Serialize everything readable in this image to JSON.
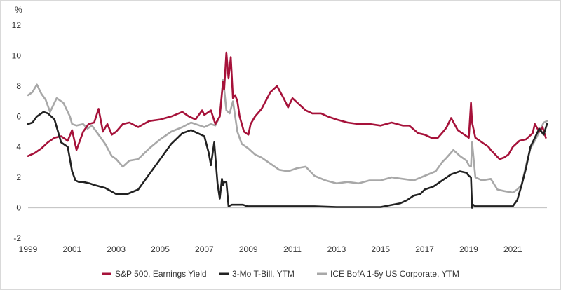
{
  "chart_data": {
    "type": "line",
    "unit_label": "%",
    "ylim": [
      -2,
      12
    ],
    "y_ticks": [
      12,
      10,
      8,
      6,
      4,
      2,
      0,
      -2
    ],
    "xlim": [
      1999.0,
      2022.55
    ],
    "x_ticks": [
      "1999",
      "2001",
      "2003",
      "2005",
      "2007",
      "2009",
      "2011",
      "2013",
      "2015",
      "2017",
      "2019",
      "2021"
    ],
    "grid": false,
    "legend_position": "bottom",
    "series": [
      {
        "name": "S&P 500, Earnings Yield",
        "color": "#a6123a",
        "x": [
          1999.0,
          1999.3,
          1999.6,
          1999.9,
          2000.2,
          2000.5,
          2000.8,
          2001.0,
          2001.2,
          2001.5,
          2001.75,
          2002.0,
          2002.2,
          2002.4,
          2002.6,
          2002.8,
          2003.0,
          2003.3,
          2003.6,
          2004.0,
          2004.5,
          2005.0,
          2005.5,
          2006.0,
          2006.3,
          2006.6,
          2006.9,
          2007.0,
          2007.3,
          2007.5,
          2007.7,
          2007.85,
          2007.9,
          2008.0,
          2008.1,
          2008.2,
          2008.3,
          2008.4,
          2008.5,
          2008.6,
          2008.8,
          2009.0,
          2009.1,
          2009.3,
          2009.6,
          2010.0,
          2010.3,
          2010.6,
          2010.8,
          2011.0,
          2011.3,
          2011.6,
          2011.9,
          2012.3,
          2012.6,
          2013.0,
          2013.5,
          2014.0,
          2014.5,
          2015.0,
          2015.5,
          2016.0,
          2016.3,
          2016.7,
          2017.0,
          2017.3,
          2017.6,
          2017.9,
          2018.0,
          2018.2,
          2018.5,
          2018.8,
          2019.0,
          2019.1,
          2019.15,
          2019.3,
          2019.6,
          2019.9,
          2020.0,
          2020.2,
          2020.4,
          2020.6,
          2020.8,
          2021.0,
          2021.3,
          2021.6,
          2021.9,
          2022.0,
          2022.2,
          2022.35,
          2022.5
        ],
        "values": [
          3.4,
          3.6,
          3.9,
          4.3,
          4.6,
          4.7,
          4.4,
          5.1,
          3.8,
          5.0,
          5.5,
          5.6,
          6.5,
          5.0,
          5.5,
          4.8,
          5.0,
          5.5,
          5.6,
          5.3,
          5.7,
          5.8,
          6.0,
          6.3,
          6.0,
          5.8,
          6.4,
          6.1,
          6.4,
          5.5,
          6.0,
          8.3,
          7.8,
          10.2,
          8.5,
          9.9,
          7.2,
          7.4,
          7.0,
          6.0,
          5.0,
          4.8,
          5.5,
          6.0,
          6.5,
          7.6,
          8.0,
          7.2,
          6.6,
          7.2,
          6.8,
          6.4,
          6.2,
          6.2,
          6.0,
          5.8,
          5.6,
          5.5,
          5.5,
          5.4,
          5.6,
          5.4,
          5.4,
          4.9,
          4.8,
          4.6,
          4.6,
          5.1,
          5.3,
          5.9,
          5.1,
          4.8,
          4.6,
          6.9,
          5.6,
          4.6,
          4.3,
          4.0,
          3.8,
          3.5,
          3.2,
          3.3,
          3.5,
          4.0,
          4.4,
          4.5,
          4.9,
          5.5,
          5.0,
          5.3,
          4.6
        ]
      },
      {
        "name": "3-Mo T-Bill, YTM",
        "color": "#222222",
        "x": [
          1999.0,
          1999.2,
          1999.4,
          1999.7,
          1999.9,
          2000.2,
          2000.5,
          2000.8,
          2001.0,
          2001.15,
          2001.3,
          2001.5,
          2001.8,
          2002.0,
          2002.5,
          2003.0,
          2003.5,
          2004.0,
          2004.5,
          2005.0,
          2005.5,
          2006.0,
          2006.4,
          2006.7,
          2007.0,
          2007.2,
          2007.3,
          2007.45,
          2007.6,
          2007.7,
          2007.8,
          2007.85,
          2007.9,
          2008.0,
          2008.1,
          2008.25,
          2008.5,
          2008.75,
          2008.95,
          2009.2,
          2010.0,
          2011.0,
          2012.0,
          2013.0,
          2014.0,
          2015.0,
          2015.9,
          2016.2,
          2016.5,
          2016.8,
          2017.0,
          2017.4,
          2017.8,
          2018.2,
          2018.6,
          2018.9,
          2019.0,
          2019.1,
          2019.15,
          2019.2,
          2019.3,
          2019.6,
          2020.0,
          2020.5,
          2021.0,
          2021.2,
          2021.4,
          2021.6,
          2021.8,
          2022.0,
          2022.2,
          2022.4,
          2022.55
        ],
        "values": [
          5.5,
          5.6,
          6.0,
          6.3,
          6.2,
          5.8,
          4.3,
          4.0,
          2.4,
          1.8,
          1.7,
          1.7,
          1.6,
          1.5,
          1.3,
          0.9,
          0.9,
          1.2,
          2.2,
          3.2,
          4.2,
          4.9,
          5.1,
          4.9,
          4.7,
          3.6,
          2.8,
          4.3,
          1.6,
          0.6,
          1.9,
          1.5,
          1.7,
          1.7,
          0.1,
          0.2,
          0.2,
          0.2,
          0.1,
          0.1,
          0.1,
          0.1,
          0.1,
          0.05,
          0.05,
          0.05,
          0.3,
          0.5,
          0.8,
          0.9,
          1.2,
          1.4,
          1.8,
          2.2,
          2.4,
          2.3,
          2.1,
          2.0,
          0.0,
          0.2,
          0.1,
          0.1,
          0.1,
          0.1,
          0.1,
          0.5,
          1.5,
          2.6,
          4.0,
          4.6,
          5.2,
          4.8,
          5.5
        ]
      },
      {
        "name": "ICE BofA 1-5y US Corporate, YTM",
        "color": "#a8a8a8",
        "x": [
          1999.0,
          1999.2,
          1999.4,
          1999.6,
          1999.8,
          2000.0,
          2000.3,
          2000.6,
          2000.9,
          2001.0,
          2001.2,
          2001.5,
          2001.7,
          2001.9,
          2002.2,
          2002.5,
          2002.8,
          2003.0,
          2003.3,
          2003.6,
          2004.0,
          2004.5,
          2005.0,
          2005.5,
          2006.0,
          2006.4,
          2006.8,
          2007.0,
          2007.3,
          2007.5,
          2007.7,
          2007.8,
          2007.85,
          2007.9,
          2008.0,
          2008.15,
          2008.3,
          2008.5,
          2008.7,
          2009.0,
          2009.3,
          2009.6,
          2010.0,
          2010.4,
          2010.8,
          2011.2,
          2011.6,
          2012.0,
          2012.5,
          2013.0,
          2013.5,
          2014.0,
          2014.5,
          2015.0,
          2015.5,
          2016.0,
          2016.5,
          2017.0,
          2017.5,
          2017.8,
          2018.0,
          2018.3,
          2018.6,
          2018.9,
          2019.0,
          2019.1,
          2019.15,
          2019.3,
          2019.6,
          2020.0,
          2020.3,
          2020.6,
          2021.0,
          2021.2,
          2021.4,
          2021.6,
          2021.8,
          2022.0,
          2022.2,
          2022.4,
          2022.55
        ],
        "values": [
          7.4,
          7.6,
          8.1,
          7.5,
          7.1,
          6.3,
          7.2,
          6.9,
          6.0,
          5.5,
          5.4,
          5.5,
          5.2,
          5.4,
          4.8,
          4.2,
          3.4,
          3.2,
          2.7,
          3.1,
          3.2,
          3.9,
          4.5,
          5.0,
          5.3,
          5.6,
          5.4,
          5.3,
          5.5,
          5.4,
          6.0,
          7.6,
          8.4,
          7.8,
          6.4,
          6.2,
          7.0,
          5.0,
          4.2,
          3.9,
          3.5,
          3.3,
          2.9,
          2.5,
          2.4,
          2.6,
          2.7,
          2.1,
          1.8,
          1.6,
          1.7,
          1.6,
          1.8,
          1.8,
          2.0,
          1.9,
          1.8,
          2.1,
          2.4,
          3.0,
          3.3,
          3.8,
          3.4,
          3.1,
          2.8,
          2.7,
          4.3,
          2.0,
          1.8,
          1.9,
          1.2,
          1.1,
          1.0,
          1.2,
          1.5,
          2.8,
          3.9,
          4.4,
          5.0,
          5.6,
          5.7
        ]
      }
    ]
  }
}
